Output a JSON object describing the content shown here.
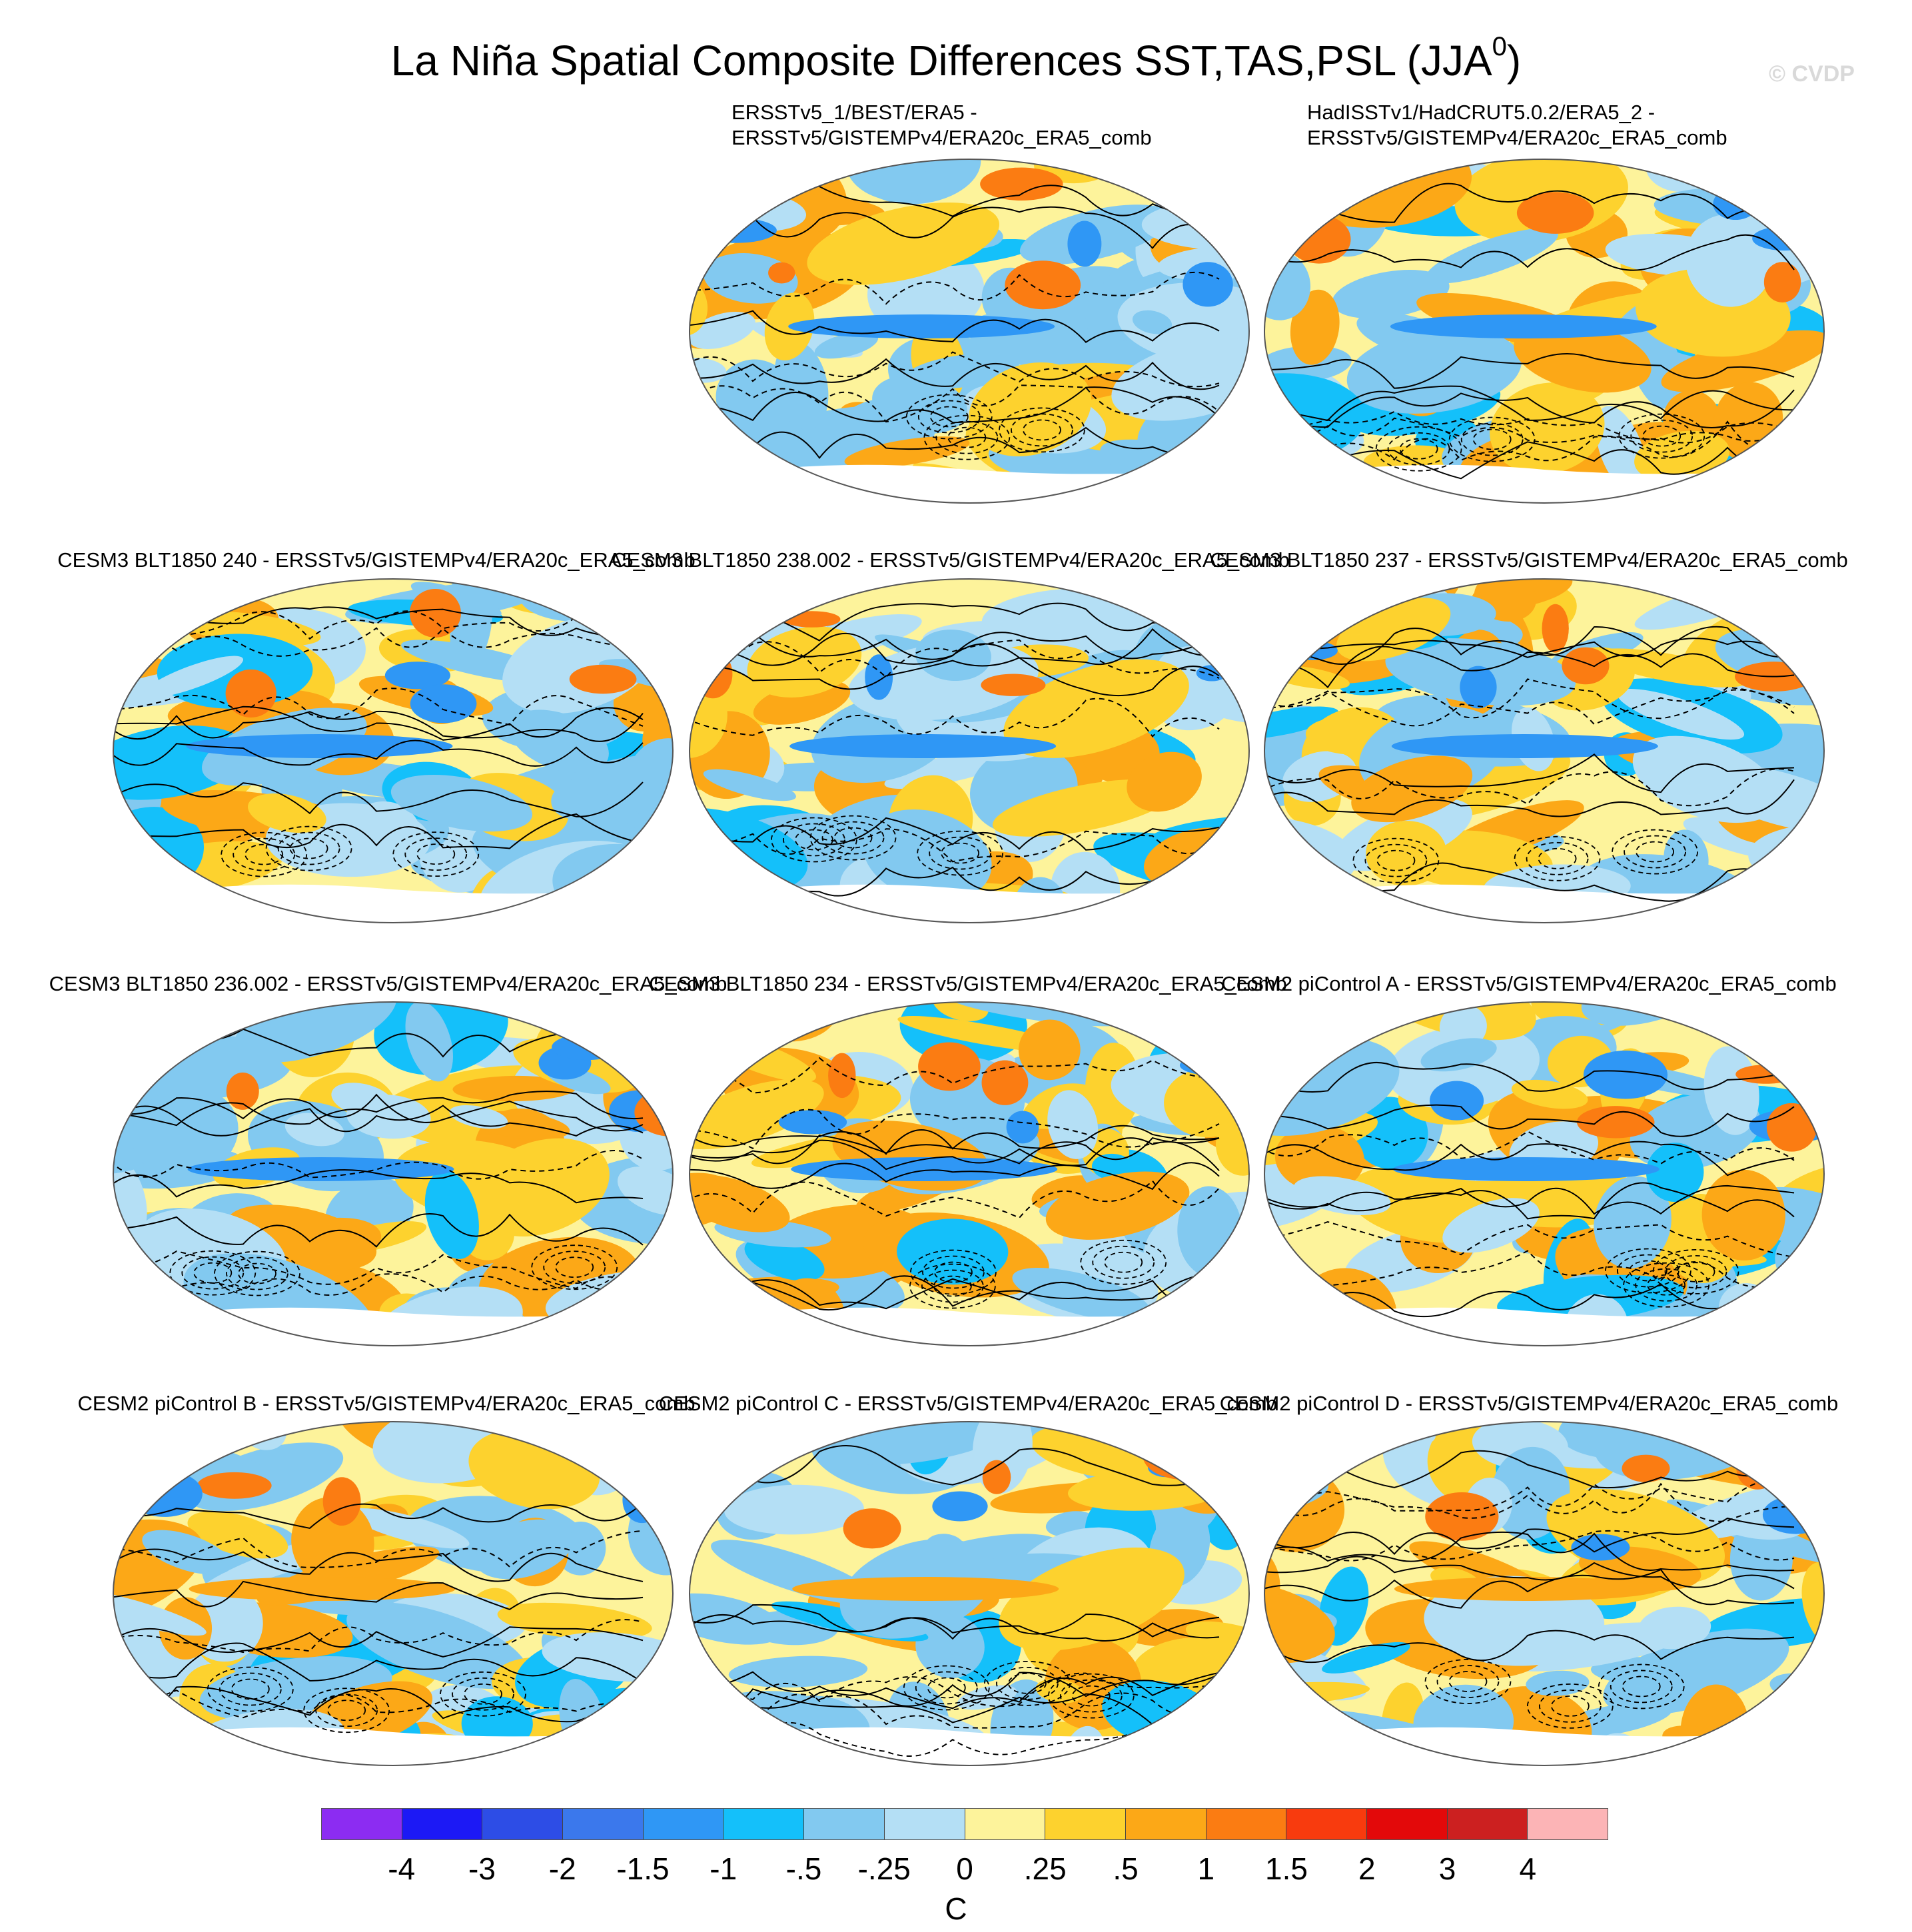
{
  "chart_data": {
    "type": "heatmap",
    "title": "La Niña Spatial Composite Differences SST,TAS,PSL (JJA",
    "title_superscript": "0",
    "title_close": ")",
    "watermark": "© CVDP",
    "panels": [
      {
        "title_line1": "ERSSTv5_1/BEST/ERA5 -",
        "title_line2": "ERSSTv5/GISTEMPv4/ERA20c_ERA5_comb"
      },
      {
        "title_line1": "HadISSTv1/HadCRUT5.0.2/ERA5_2 -",
        "title_line2": "ERSSTv5/GISTEMPv4/ERA20c_ERA5_comb"
      },
      {
        "title_line1": "CESM3 BLT1850 240 - ERSSTv5/GISTEMPv4/ERA20c_ERA5_comb"
      },
      {
        "title_line1": "CESM3 BLT1850 238.002 - ERSSTv5/GISTEMPv4/ERA20c_ERA5_comb"
      },
      {
        "title_line1": "CESM3 BLT1850 237 - ERSSTv5/GISTEMPv4/ERA20c_ERA5_comb"
      },
      {
        "title_line1": "CESM3 BLT1850 236.002 - ERSSTv5/GISTEMPv4/ERA20c_ERA5_comb"
      },
      {
        "title_line1": "CESM3 BLT1850 234 - ERSSTv5/GISTEMPv4/ERA20c_ERA5_comb"
      },
      {
        "title_line1": "CESM2 piControl A - ERSSTv5/GISTEMPv4/ERA20c_ERA5_comb"
      },
      {
        "title_line1": "CESM2 piControl B - ERSSTv5/GISTEMPv4/ERA20c_ERA5_comb"
      },
      {
        "title_line1": "CESM2 piControl C - ERSSTv5/GISTEMPv4/ERA20c_ERA5_comb"
      },
      {
        "title_line1": "CESM2 piControl D - ERSSTv5/GISTEMPv4/ERA20c_ERA5_comb"
      }
    ],
    "colorbar": {
      "unit": "C",
      "levels": [
        "-4",
        "-3",
        "-2",
        "-1.5",
        "-1",
        "-.5",
        "-.25",
        "0",
        ".25",
        ".5",
        "1",
        "1.5",
        "2",
        "3",
        "4"
      ],
      "colors": [
        "#8c2cf2",
        "#1c19f5",
        "#2d4de6",
        "#3b78ec",
        "#2f97f5",
        "#14c0fa",
        "#82c9f0",
        "#b4dff5",
        "#fdf39b",
        "#fdd22e",
        "#fca817",
        "#fb7c12",
        "#f83b0e",
        "#e3090a",
        "#cc2020",
        "#fcb4b6"
      ]
    }
  }
}
